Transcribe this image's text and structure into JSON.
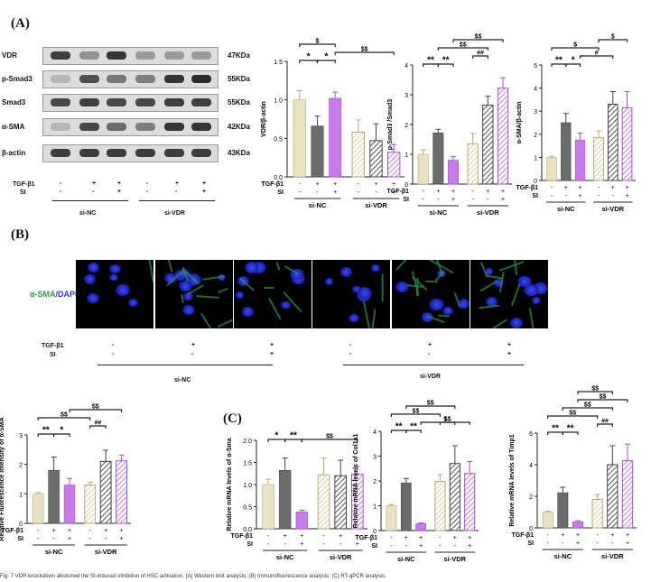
{
  "panels": {
    "A": "(A)",
    "B": "(B)",
    "C": "(C)"
  },
  "blot": {
    "rows": [
      {
        "name": "VDR",
        "kda": "47KDa",
        "intensity": [
          0.85,
          0.4,
          0.9,
          0.35,
          0.35,
          0.35
        ]
      },
      {
        "name": "p-Smad3",
        "kda": "55KDa",
        "intensity": [
          0.2,
          0.75,
          0.55,
          0.5,
          0.9,
          0.95
        ]
      },
      {
        "name": "Smad3",
        "kda": "55KDa",
        "intensity": [
          0.8,
          0.85,
          0.8,
          0.8,
          0.85,
          0.85
        ]
      },
      {
        "name": "α-SMA",
        "kda": "42KDa",
        "intensity": [
          0.2,
          0.8,
          0.6,
          0.5,
          0.9,
          0.9
        ]
      },
      {
        "name": "β-actin",
        "kda": "43KDa",
        "intensity": [
          0.85,
          0.85,
          0.85,
          0.85,
          0.85,
          0.85
        ]
      }
    ],
    "treat_labels": [
      "TGF-β1",
      "SI"
    ],
    "tgf": [
      "-",
      "+",
      "+",
      "-",
      "+",
      "+"
    ],
    "si": [
      "-",
      "-",
      "+",
      "-",
      "-",
      "+"
    ],
    "groups": [
      "si-NC",
      "si-VDR"
    ]
  },
  "if_panel": {
    "stain_prefix": "α-SMA",
    "stain_suffix": "/DAPI",
    "tgf": [
      "-",
      "+",
      "+",
      "-",
      "+",
      "+"
    ],
    "si": [
      "-",
      "-",
      "+",
      "-",
      "-",
      "+"
    ],
    "treat_labels": [
      "TGF-β1",
      "SI"
    ],
    "groups": [
      "si-NC",
      "si-VDR"
    ]
  },
  "caption": "Fig. 7 VDR knockdown abolished the SI-induced inhibition of HSC activation. (A) Western blot analysis; (B) Immunofluorescence analysis; (C) RT-qPCR analysis.",
  "chart_data": [
    {
      "type": "bar",
      "ylabel": "VDR/β-actin",
      "ylim": [
        0,
        1.5
      ],
      "yticks": [
        0.0,
        0.5,
        1.0,
        1.5
      ],
      "values": [
        1.0,
        0.66,
        1.02,
        0.58,
        0.47,
        0.32
      ],
      "errors": [
        0.12,
        0.13,
        0.08,
        0.16,
        0.22,
        0.1
      ],
      "tgf": [
        "-",
        "+",
        "+",
        "-",
        "+",
        "+"
      ],
      "si": [
        "-",
        "-",
        "+",
        "-",
        "-",
        "+"
      ],
      "treat_labels": [
        "TGF-β1",
        "SI"
      ],
      "groups": [
        "si-NC",
        "si-VDR"
      ],
      "annotations": [
        "*",
        "*",
        "$",
        "$$"
      ]
    },
    {
      "type": "bar",
      "ylabel": "p-Smad3 /Smad3",
      "ylim": [
        0,
        4
      ],
      "yticks": [
        0,
        1,
        2,
        3,
        4
      ],
      "values": [
        1.0,
        1.72,
        0.8,
        1.35,
        2.65,
        3.22
      ],
      "errors": [
        0.15,
        0.12,
        0.12,
        0.35,
        0.3,
        0.35
      ],
      "tgf": [
        "-",
        "+",
        "+",
        "-",
        "+",
        "+"
      ],
      "si": [
        "-",
        "-",
        "+",
        "-",
        "-",
        "+"
      ],
      "treat_labels": [
        "TGF-β1",
        "SI"
      ],
      "groups": [
        "si-NC",
        "si-VDR"
      ],
      "annotations": [
        "**",
        "**",
        "$$",
        "$$",
        "##"
      ]
    },
    {
      "type": "bar",
      "ylabel": "α-SMA/β-actin",
      "ylim": [
        0,
        5
      ],
      "yticks": [
        0,
        1,
        2,
        3,
        4,
        5
      ],
      "values": [
        1.0,
        2.5,
        1.75,
        1.85,
        3.3,
        3.15
      ],
      "errors": [
        0.05,
        0.4,
        0.3,
        0.3,
        0.55,
        0.7
      ],
      "tgf": [
        "-",
        "+",
        "+",
        "-",
        "+",
        "+"
      ],
      "si": [
        "-",
        "-",
        "+",
        "-",
        "-",
        "+"
      ],
      "treat_labels": [
        "TGF-β1",
        "SI"
      ],
      "groups": [
        "si-NC",
        "si-VDR"
      ],
      "annotations": [
        "**",
        "*",
        "$",
        "#",
        "$"
      ]
    },
    {
      "type": "bar",
      "ylabel": "Relative Fluorescence Intensity of α-SMA",
      "ylim": [
        0,
        3
      ],
      "yticks": [
        0,
        1,
        2,
        3
      ],
      "values": [
        1.0,
        1.8,
        1.3,
        1.3,
        2.1,
        2.12
      ],
      "errors": [
        0.05,
        0.45,
        0.22,
        0.1,
        0.38,
        0.2
      ],
      "tgf": [
        "-",
        "+",
        "+",
        "-",
        "+",
        "+"
      ],
      "si": [
        "-",
        "-",
        "+",
        "-",
        "-",
        "+"
      ],
      "treat_labels": [
        "TGF-β1",
        "SI"
      ],
      "groups": [
        "si-NC",
        "si-VDR"
      ],
      "annotations": [
        "**",
        "*",
        "$$",
        "$$",
        "##"
      ]
    },
    {
      "type": "bar",
      "ylabel": "Relative mRNA levels of α-Sma",
      "ylim": [
        0,
        2.0
      ],
      "yticks": [
        0.0,
        0.5,
        1.0,
        1.5,
        2.0
      ],
      "values": [
        1.0,
        1.32,
        0.38,
        1.22,
        1.2,
        1.23
      ],
      "errors": [
        0.12,
        0.28,
        0.04,
        0.38,
        0.35,
        0.18
      ],
      "tgf": [
        "-",
        "+",
        "+",
        "-",
        "+",
        "+"
      ],
      "si": [
        "-",
        "-",
        "+",
        "-",
        "-",
        "+"
      ],
      "treat_labels": [
        "TGF-β1",
        "SI"
      ],
      "groups": [
        "si-NC",
        "si-VDR"
      ],
      "annotations": [
        "*",
        "**",
        "$$"
      ]
    },
    {
      "type": "bar",
      "ylabel": "Relative mRNA levels of Col1a1",
      "ylim": [
        0,
        4
      ],
      "yticks": [
        0,
        1,
        2,
        3,
        4
      ],
      "values": [
        1.0,
        1.92,
        0.28,
        1.98,
        2.7,
        2.3
      ],
      "errors": [
        0.05,
        0.18,
        0.03,
        0.28,
        0.72,
        0.48
      ],
      "tgf": [
        "-",
        "+",
        "+",
        "-",
        "+",
        "+"
      ],
      "si": [
        "-",
        "-",
        "+",
        "-",
        "-",
        "+"
      ],
      "treat_labels": [
        "TGF-β1",
        "SI"
      ],
      "groups": [
        "si-NC",
        "si-VDR"
      ],
      "annotations": [
        "**",
        "**",
        "$$",
        "$$",
        "$",
        "$$"
      ]
    },
    {
      "type": "bar",
      "ylabel": "Relative mRNA levels of Timp1",
      "ylim": [
        0,
        6
      ],
      "yticks": [
        0,
        2,
        4,
        6
      ],
      "values": [
        1.0,
        2.22,
        0.38,
        1.8,
        4.0,
        4.25
      ],
      "errors": [
        0.05,
        0.35,
        0.08,
        0.32,
        1.2,
        1.05
      ],
      "tgf": [
        "-",
        "+",
        "+",
        "-",
        "+",
        "+"
      ],
      "si": [
        "-",
        "-",
        "+",
        "-",
        "-",
        "+"
      ],
      "treat_labels": [
        "TGF-β1",
        "SI"
      ],
      "groups": [
        "si-NC",
        "si-VDR"
      ],
      "annotations": [
        "**",
        "**",
        "$$",
        "$$",
        "$$",
        "##",
        "$$"
      ]
    }
  ]
}
